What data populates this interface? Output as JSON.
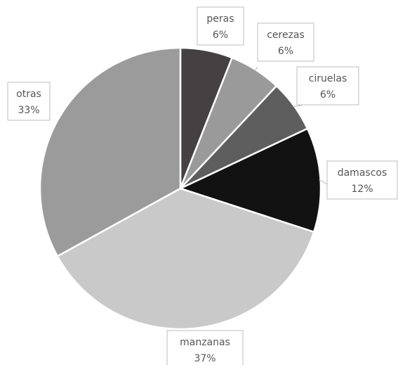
{
  "chart_data": {
    "type": "pie",
    "slices": [
      {
        "category": "peras",
        "percent_label": "6%",
        "value": 6,
        "color": "#454143"
      },
      {
        "category": "cerezas",
        "percent_label": "6%",
        "value": 6,
        "color": "#9a9a9a"
      },
      {
        "category": "ciruelas",
        "percent_label": "6%",
        "value": 6,
        "color": "#5e5e5e"
      },
      {
        "category": "damascos",
        "percent_label": "12%",
        "value": 12,
        "color": "#121212"
      },
      {
        "category": "manzanas",
        "percent_label": "37%",
        "value": 37,
        "color": "#c9c9c9"
      },
      {
        "category": "otras",
        "percent_label": "33%",
        "value": 33,
        "color": "#9b9b9b"
      }
    ],
    "start": "12 o'clock, clockwise",
    "legend": "none",
    "data_labels": "outside with leader lines"
  }
}
